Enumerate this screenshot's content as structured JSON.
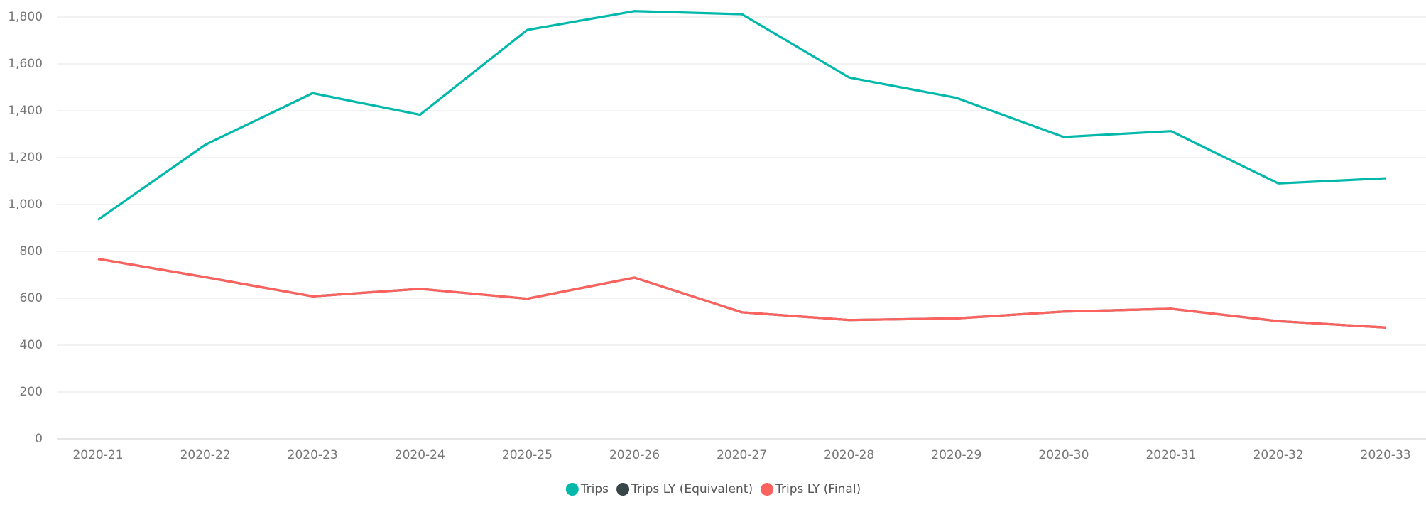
{
  "chart_data": {
    "type": "line",
    "categories": [
      "2020-21",
      "2020-22",
      "2020-23",
      "2020-24",
      "2020-25",
      "2020-26",
      "2020-27",
      "2020-28",
      "2020-29",
      "2020-30",
      "2020-31",
      "2020-32",
      "2020-33"
    ],
    "series": [
      {
        "name": "Trips",
        "color": "#01B8AA",
        "values": [
          935,
          1255,
          1475,
          1383,
          1745,
          1825,
          1812,
          1542,
          1455,
          1288,
          1313,
          1090,
          1112
        ]
      },
      {
        "name": "Trips LY (Equivalent)",
        "color": "#374649",
        "values": [
          768,
          690,
          608,
          640,
          598,
          688,
          540,
          507,
          514,
          543,
          555,
          502,
          475
        ]
      },
      {
        "name": "Trips LY (Final)",
        "color": "#FD625E",
        "values": [
          768,
          690,
          608,
          640,
          598,
          688,
          540,
          507,
          514,
          543,
          555,
          502,
          475
        ]
      }
    ],
    "ylim": [
      0,
      1850
    ],
    "yticks": [
      0,
      200,
      400,
      600,
      800,
      {
        "value": 1000,
        "label": "1,000"
      },
      {
        "value": 1200,
        "label": "1,200"
      },
      {
        "value": 1400,
        "label": "1,400"
      },
      {
        "value": 1600,
        "label": "1,600"
      },
      {
        "value": 1800,
        "label": "1,800"
      }
    ],
    "grid": true,
    "legend": "bottom"
  }
}
